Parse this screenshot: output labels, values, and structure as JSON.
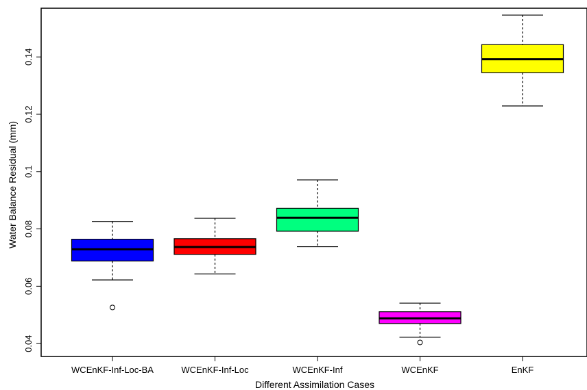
{
  "chart_data": {
    "type": "box",
    "xlabel": "Different Assimilation Cases",
    "ylabel": "Water Balance Residual (mm)",
    "ylim": [
      0.0355,
      0.157
    ],
    "yticks": [
      {
        "value": 0.04,
        "label": "0.04"
      },
      {
        "value": 0.06,
        "label": "0.06"
      },
      {
        "value": 0.08,
        "label": "0.08"
      },
      {
        "value": 0.1,
        "label": "0.1"
      },
      {
        "value": 0.12,
        "label": "0.12"
      },
      {
        "value": 0.14,
        "label": "0.14"
      }
    ],
    "grid": false,
    "legend": "none",
    "categories": [
      "WCEnKF-Inf-Loc-BA",
      "WCEnKF-Inf-Loc",
      "WCEnKF-Inf",
      "WCEnKF",
      "EnKF"
    ],
    "boxes": [
      {
        "category": "WCEnKF-Inf-Loc-BA",
        "color": "#0000ff",
        "whisker_low": 0.0622,
        "q1": 0.0688,
        "median": 0.0729,
        "q3": 0.0764,
        "whisker_high": 0.0826,
        "outliers": [
          0.0526
        ]
      },
      {
        "category": "WCEnKF-Inf-Loc",
        "color": "#ff0000",
        "whisker_low": 0.0643,
        "q1": 0.0711,
        "median": 0.0737,
        "q3": 0.0766,
        "whisker_high": 0.0837,
        "outliers": []
      },
      {
        "category": "WCEnKF-Inf",
        "color": "#00ff7f",
        "whisker_low": 0.0738,
        "q1": 0.0792,
        "median": 0.0839,
        "q3": 0.0872,
        "whisker_high": 0.0971,
        "outliers": []
      },
      {
        "category": "WCEnKF",
        "color": "#ff00ff",
        "whisker_low": 0.0422,
        "q1": 0.047,
        "median": 0.0488,
        "q3": 0.0511,
        "whisker_high": 0.0541,
        "outliers": [
          0.0404
        ]
      },
      {
        "category": "EnKF",
        "color": "#ffff00",
        "whisker_low": 0.1229,
        "q1": 0.1345,
        "median": 0.1392,
        "q3": 0.1443,
        "whisker_high": 0.1546,
        "outliers": []
      }
    ]
  }
}
